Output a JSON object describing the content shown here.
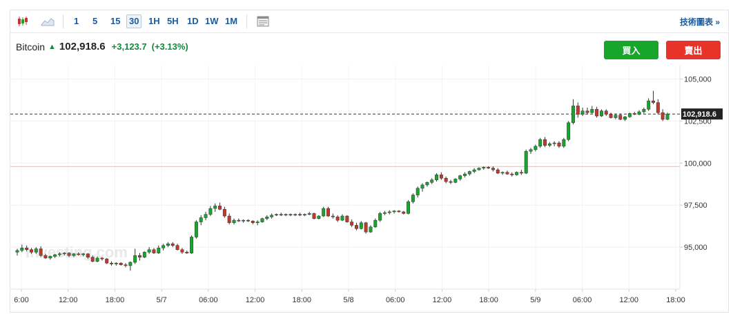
{
  "toolbar": {
    "candlestick_icon": "candlestick-chart-icon",
    "area_icon": "area-chart-icon",
    "timeframes": [
      "1",
      "5",
      "15",
      "30",
      "1H",
      "5H",
      "1D",
      "1W",
      "1M"
    ],
    "active_timeframe": "30",
    "layout_icon": "chart-layout-icon",
    "tech_chart_label": "技術圖表",
    "tech_chart_arrow": "»"
  },
  "quote": {
    "name": "Bitcoin",
    "price": "102,918.6",
    "change": "+3,123.7",
    "change_pct": "(+3.13%)"
  },
  "actions": {
    "buy_label": "買入",
    "sell_label": "賣出"
  },
  "watermark": "Investing.com",
  "colors": {
    "up": "#17a52b",
    "down": "#c0392b",
    "accent": "#1a5a9e",
    "buy": "#17a52b",
    "sell": "#e8332b"
  },
  "chart_data": {
    "type": "candlestick",
    "title": "",
    "xlabel": "",
    "ylabel": "",
    "ylim": [
      92500,
      105800
    ],
    "y_ticks": [
      95000,
      97500,
      100000,
      102500,
      105000
    ],
    "y_tick_labels": [
      "95,000",
      "97,500",
      "100,000",
      "102,500",
      "105,000"
    ],
    "x_tick_labels": [
      "6:00",
      "12:00",
      "18:00",
      "5/7",
      "06:00",
      "12:00",
      "18:00",
      "5/8",
      "06:00",
      "12:00",
      "18:00",
      "5/9",
      "06:00",
      "12:00",
      "18:00"
    ],
    "last_price": 102918.6,
    "last_price_label": "102,918.6",
    "reference_line": 99795,
    "candles": [
      {
        "o": 94700,
        "h": 94900,
        "l": 94500,
        "c": 94800
      },
      {
        "o": 94800,
        "h": 95150,
        "l": 94700,
        "c": 94950
      },
      {
        "o": 94950,
        "h": 95100,
        "l": 94750,
        "c": 94850
      },
      {
        "o": 94850,
        "h": 94950,
        "l": 94600,
        "c": 94700
      },
      {
        "o": 94700,
        "h": 95000,
        "l": 94600,
        "c": 94900
      },
      {
        "o": 94900,
        "h": 95050,
        "l": 94400,
        "c": 94500
      },
      {
        "o": 94500,
        "h": 94600,
        "l": 94300,
        "c": 94350
      },
      {
        "o": 94350,
        "h": 94500,
        "l": 94250,
        "c": 94450
      },
      {
        "o": 94450,
        "h": 94600,
        "l": 94350,
        "c": 94550
      },
      {
        "o": 94550,
        "h": 94700,
        "l": 94450,
        "c": 94600
      },
      {
        "o": 94600,
        "h": 94700,
        "l": 94500,
        "c": 94650
      },
      {
        "o": 94650,
        "h": 94700,
        "l": 94400,
        "c": 94500
      },
      {
        "o": 94500,
        "h": 94650,
        "l": 94400,
        "c": 94600
      },
      {
        "o": 94600,
        "h": 94700,
        "l": 94500,
        "c": 94550
      },
      {
        "o": 94550,
        "h": 94650,
        "l": 94450,
        "c": 94600
      },
      {
        "o": 94600,
        "h": 94650,
        "l": 94300,
        "c": 94400
      },
      {
        "o": 94400,
        "h": 94500,
        "l": 94100,
        "c": 94150
      },
      {
        "o": 94150,
        "h": 94450,
        "l": 94100,
        "c": 94350
      },
      {
        "o": 94350,
        "h": 94400,
        "l": 94200,
        "c": 94300
      },
      {
        "o": 94300,
        "h": 94350,
        "l": 94000,
        "c": 94050
      },
      {
        "o": 94050,
        "h": 94150,
        "l": 93900,
        "c": 94000
      },
      {
        "o": 94000,
        "h": 94100,
        "l": 93900,
        "c": 94050
      },
      {
        "o": 94050,
        "h": 94100,
        "l": 93900,
        "c": 93950
      },
      {
        "o": 93950,
        "h": 94050,
        "l": 93800,
        "c": 93900
      },
      {
        "o": 93900,
        "h": 94150,
        "l": 93600,
        "c": 94100
      },
      {
        "o": 94100,
        "h": 94900,
        "l": 94000,
        "c": 94500
      },
      {
        "o": 94500,
        "h": 94650,
        "l": 94200,
        "c": 94400
      },
      {
        "o": 94400,
        "h": 94750,
        "l": 94350,
        "c": 94700
      },
      {
        "o": 94700,
        "h": 95000,
        "l": 94600,
        "c": 94850
      },
      {
        "o": 94850,
        "h": 94950,
        "l": 94600,
        "c": 94650
      },
      {
        "o": 94650,
        "h": 95100,
        "l": 94600,
        "c": 94950
      },
      {
        "o": 94950,
        "h": 95200,
        "l": 94800,
        "c": 95100
      },
      {
        "o": 95100,
        "h": 95300,
        "l": 95000,
        "c": 95200
      },
      {
        "o": 95200,
        "h": 95300,
        "l": 95000,
        "c": 95100
      },
      {
        "o": 95100,
        "h": 95200,
        "l": 94800,
        "c": 94850
      },
      {
        "o": 94850,
        "h": 94950,
        "l": 94600,
        "c": 94700
      },
      {
        "o": 94700,
        "h": 94800,
        "l": 94600,
        "c": 94650
      },
      {
        "o": 94650,
        "h": 95700,
        "l": 94600,
        "c": 95600
      },
      {
        "o": 95600,
        "h": 96600,
        "l": 95500,
        "c": 96500
      },
      {
        "o": 96500,
        "h": 96900,
        "l": 96300,
        "c": 96750
      },
      {
        "o": 96750,
        "h": 97100,
        "l": 96600,
        "c": 96950
      },
      {
        "o": 96950,
        "h": 97450,
        "l": 96850,
        "c": 97300
      },
      {
        "o": 97300,
        "h": 97600,
        "l": 97100,
        "c": 97450
      },
      {
        "o": 97450,
        "h": 97650,
        "l": 97200,
        "c": 97250
      },
      {
        "o": 97250,
        "h": 97400,
        "l": 96750,
        "c": 96850
      },
      {
        "o": 96850,
        "h": 97000,
        "l": 96350,
        "c": 96450
      },
      {
        "o": 96450,
        "h": 96700,
        "l": 96350,
        "c": 96600
      },
      {
        "o": 96600,
        "h": 96700,
        "l": 96500,
        "c": 96550
      },
      {
        "o": 96550,
        "h": 96650,
        "l": 96450,
        "c": 96600
      },
      {
        "o": 96600,
        "h": 96650,
        "l": 96500,
        "c": 96550
      },
      {
        "o": 96550,
        "h": 96600,
        "l": 96350,
        "c": 96450
      },
      {
        "o": 96450,
        "h": 96600,
        "l": 96300,
        "c": 96500
      },
      {
        "o": 96500,
        "h": 96750,
        "l": 96450,
        "c": 96700
      },
      {
        "o": 96700,
        "h": 96900,
        "l": 96600,
        "c": 96800
      },
      {
        "o": 96800,
        "h": 97000,
        "l": 96700,
        "c": 96900
      },
      {
        "o": 96900,
        "h": 97000,
        "l": 96850,
        "c": 96950
      },
      {
        "o": 96950,
        "h": 97050,
        "l": 96850,
        "c": 96900
      },
      {
        "o": 96900,
        "h": 97000,
        "l": 96850,
        "c": 96950
      },
      {
        "o": 96950,
        "h": 97000,
        "l": 96850,
        "c": 96900
      },
      {
        "o": 96900,
        "h": 97000,
        "l": 96850,
        "c": 96950
      },
      {
        "o": 96950,
        "h": 97050,
        "l": 96850,
        "c": 96900
      },
      {
        "o": 96900,
        "h": 97000,
        "l": 96850,
        "c": 96950
      },
      {
        "o": 96950,
        "h": 97100,
        "l": 96900,
        "c": 97000
      },
      {
        "o": 97000,
        "h": 97050,
        "l": 96650,
        "c": 96700
      },
      {
        "o": 96700,
        "h": 96900,
        "l": 96650,
        "c": 96850
      },
      {
        "o": 96850,
        "h": 97400,
        "l": 96800,
        "c": 97300
      },
      {
        "o": 97300,
        "h": 97400,
        "l": 96800,
        "c": 96850
      },
      {
        "o": 96850,
        "h": 97000,
        "l": 96700,
        "c": 96800
      },
      {
        "o": 96800,
        "h": 96900,
        "l": 96500,
        "c": 96600
      },
      {
        "o": 96600,
        "h": 96950,
        "l": 96550,
        "c": 96850
      },
      {
        "o": 96850,
        "h": 96900,
        "l": 96450,
        "c": 96500
      },
      {
        "o": 96500,
        "h": 96650,
        "l": 96200,
        "c": 96300
      },
      {
        "o": 96300,
        "h": 96450,
        "l": 96000,
        "c": 96100
      },
      {
        "o": 96100,
        "h": 96550,
        "l": 96050,
        "c": 96450
      },
      {
        "o": 96450,
        "h": 96500,
        "l": 95800,
        "c": 95900
      },
      {
        "o": 95900,
        "h": 96300,
        "l": 95850,
        "c": 96200
      },
      {
        "o": 96200,
        "h": 96700,
        "l": 96150,
        "c": 96600
      },
      {
        "o": 96600,
        "h": 97100,
        "l": 96500,
        "c": 97000
      },
      {
        "o": 97000,
        "h": 97150,
        "l": 96900,
        "c": 97050
      },
      {
        "o": 97050,
        "h": 97200,
        "l": 96950,
        "c": 97100
      },
      {
        "o": 97100,
        "h": 97200,
        "l": 97000,
        "c": 97150
      },
      {
        "o": 97150,
        "h": 97200,
        "l": 97050,
        "c": 97100
      },
      {
        "o": 97100,
        "h": 97150,
        "l": 96950,
        "c": 97000
      },
      {
        "o": 97000,
        "h": 97800,
        "l": 96950,
        "c": 97700
      },
      {
        "o": 97700,
        "h": 98200,
        "l": 97600,
        "c": 98100
      },
      {
        "o": 98100,
        "h": 98600,
        "l": 97950,
        "c": 98500
      },
      {
        "o": 98500,
        "h": 98800,
        "l": 98300,
        "c": 98700
      },
      {
        "o": 98700,
        "h": 98900,
        "l": 98600,
        "c": 98850
      },
      {
        "o": 98850,
        "h": 99100,
        "l": 98750,
        "c": 99000
      },
      {
        "o": 99000,
        "h": 99400,
        "l": 98900,
        "c": 99300
      },
      {
        "o": 99300,
        "h": 99450,
        "l": 99000,
        "c": 99100
      },
      {
        "o": 99100,
        "h": 99200,
        "l": 98800,
        "c": 98900
      },
      {
        "o": 98900,
        "h": 99000,
        "l": 98750,
        "c": 98850
      },
      {
        "o": 98850,
        "h": 99100,
        "l": 98800,
        "c": 99050
      },
      {
        "o": 99050,
        "h": 99300,
        "l": 98950,
        "c": 99250
      },
      {
        "o": 99250,
        "h": 99450,
        "l": 99150,
        "c": 99350
      },
      {
        "o": 99350,
        "h": 99550,
        "l": 99250,
        "c": 99500
      },
      {
        "o": 99500,
        "h": 99700,
        "l": 99400,
        "c": 99600
      },
      {
        "o": 99600,
        "h": 99750,
        "l": 99550,
        "c": 99700
      },
      {
        "o": 99700,
        "h": 99800,
        "l": 99600,
        "c": 99750
      },
      {
        "o": 99750,
        "h": 99800,
        "l": 99650,
        "c": 99700
      },
      {
        "o": 99700,
        "h": 99800,
        "l": 99500,
        "c": 99600
      },
      {
        "o": 99600,
        "h": 99700,
        "l": 99350,
        "c": 99400
      },
      {
        "o": 99400,
        "h": 99500,
        "l": 99300,
        "c": 99450
      },
      {
        "o": 99450,
        "h": 99550,
        "l": 99300,
        "c": 99350
      },
      {
        "o": 99350,
        "h": 99450,
        "l": 99200,
        "c": 99300
      },
      {
        "o": 99300,
        "h": 99500,
        "l": 99250,
        "c": 99450
      },
      {
        "o": 99450,
        "h": 99600,
        "l": 99300,
        "c": 99400
      },
      {
        "o": 99400,
        "h": 100800,
        "l": 99350,
        "c": 100700
      },
      {
        "o": 100700,
        "h": 100900,
        "l": 100550,
        "c": 100800
      },
      {
        "o": 100800,
        "h": 101100,
        "l": 100700,
        "c": 101000
      },
      {
        "o": 101000,
        "h": 101500,
        "l": 100900,
        "c": 101400
      },
      {
        "o": 101400,
        "h": 101550,
        "l": 100950,
        "c": 101050
      },
      {
        "o": 101050,
        "h": 101250,
        "l": 100950,
        "c": 101150
      },
      {
        "o": 101150,
        "h": 101300,
        "l": 101000,
        "c": 101200
      },
      {
        "o": 101200,
        "h": 101300,
        "l": 100900,
        "c": 101000
      },
      {
        "o": 101000,
        "h": 101500,
        "l": 100900,
        "c": 101400
      },
      {
        "o": 101400,
        "h": 102500,
        "l": 101300,
        "c": 102400
      },
      {
        "o": 102400,
        "h": 103800,
        "l": 102300,
        "c": 103400
      },
      {
        "o": 103400,
        "h": 103600,
        "l": 102700,
        "c": 102900
      },
      {
        "o": 102900,
        "h": 103300,
        "l": 102800,
        "c": 103100
      },
      {
        "o": 103100,
        "h": 103300,
        "l": 102900,
        "c": 103000
      },
      {
        "o": 103000,
        "h": 103400,
        "l": 102950,
        "c": 103200
      },
      {
        "o": 103200,
        "h": 103350,
        "l": 102700,
        "c": 102800
      },
      {
        "o": 102800,
        "h": 103200,
        "l": 102750,
        "c": 103100
      },
      {
        "o": 103100,
        "h": 103200,
        "l": 102800,
        "c": 102900
      },
      {
        "o": 102900,
        "h": 103000,
        "l": 102650,
        "c": 102700
      },
      {
        "o": 102700,
        "h": 102950,
        "l": 102600,
        "c": 102850
      },
      {
        "o": 102850,
        "h": 102950,
        "l": 102550,
        "c": 102600
      },
      {
        "o": 102600,
        "h": 102800,
        "l": 102500,
        "c": 102750
      },
      {
        "o": 102750,
        "h": 103000,
        "l": 102700,
        "c": 102950
      },
      {
        "o": 102950,
        "h": 103050,
        "l": 102850,
        "c": 102900
      },
      {
        "o": 102900,
        "h": 103150,
        "l": 102850,
        "c": 103050
      },
      {
        "o": 103050,
        "h": 103300,
        "l": 102950,
        "c": 103200
      },
      {
        "o": 103200,
        "h": 103850,
        "l": 103100,
        "c": 103700
      },
      {
        "o": 103700,
        "h": 104300,
        "l": 103500,
        "c": 103600
      },
      {
        "o": 103600,
        "h": 103800,
        "l": 102900,
        "c": 103000
      },
      {
        "o": 103000,
        "h": 103200,
        "l": 102500,
        "c": 102600
      },
      {
        "o": 102600,
        "h": 103000,
        "l": 102550,
        "c": 102918.6
      }
    ]
  }
}
